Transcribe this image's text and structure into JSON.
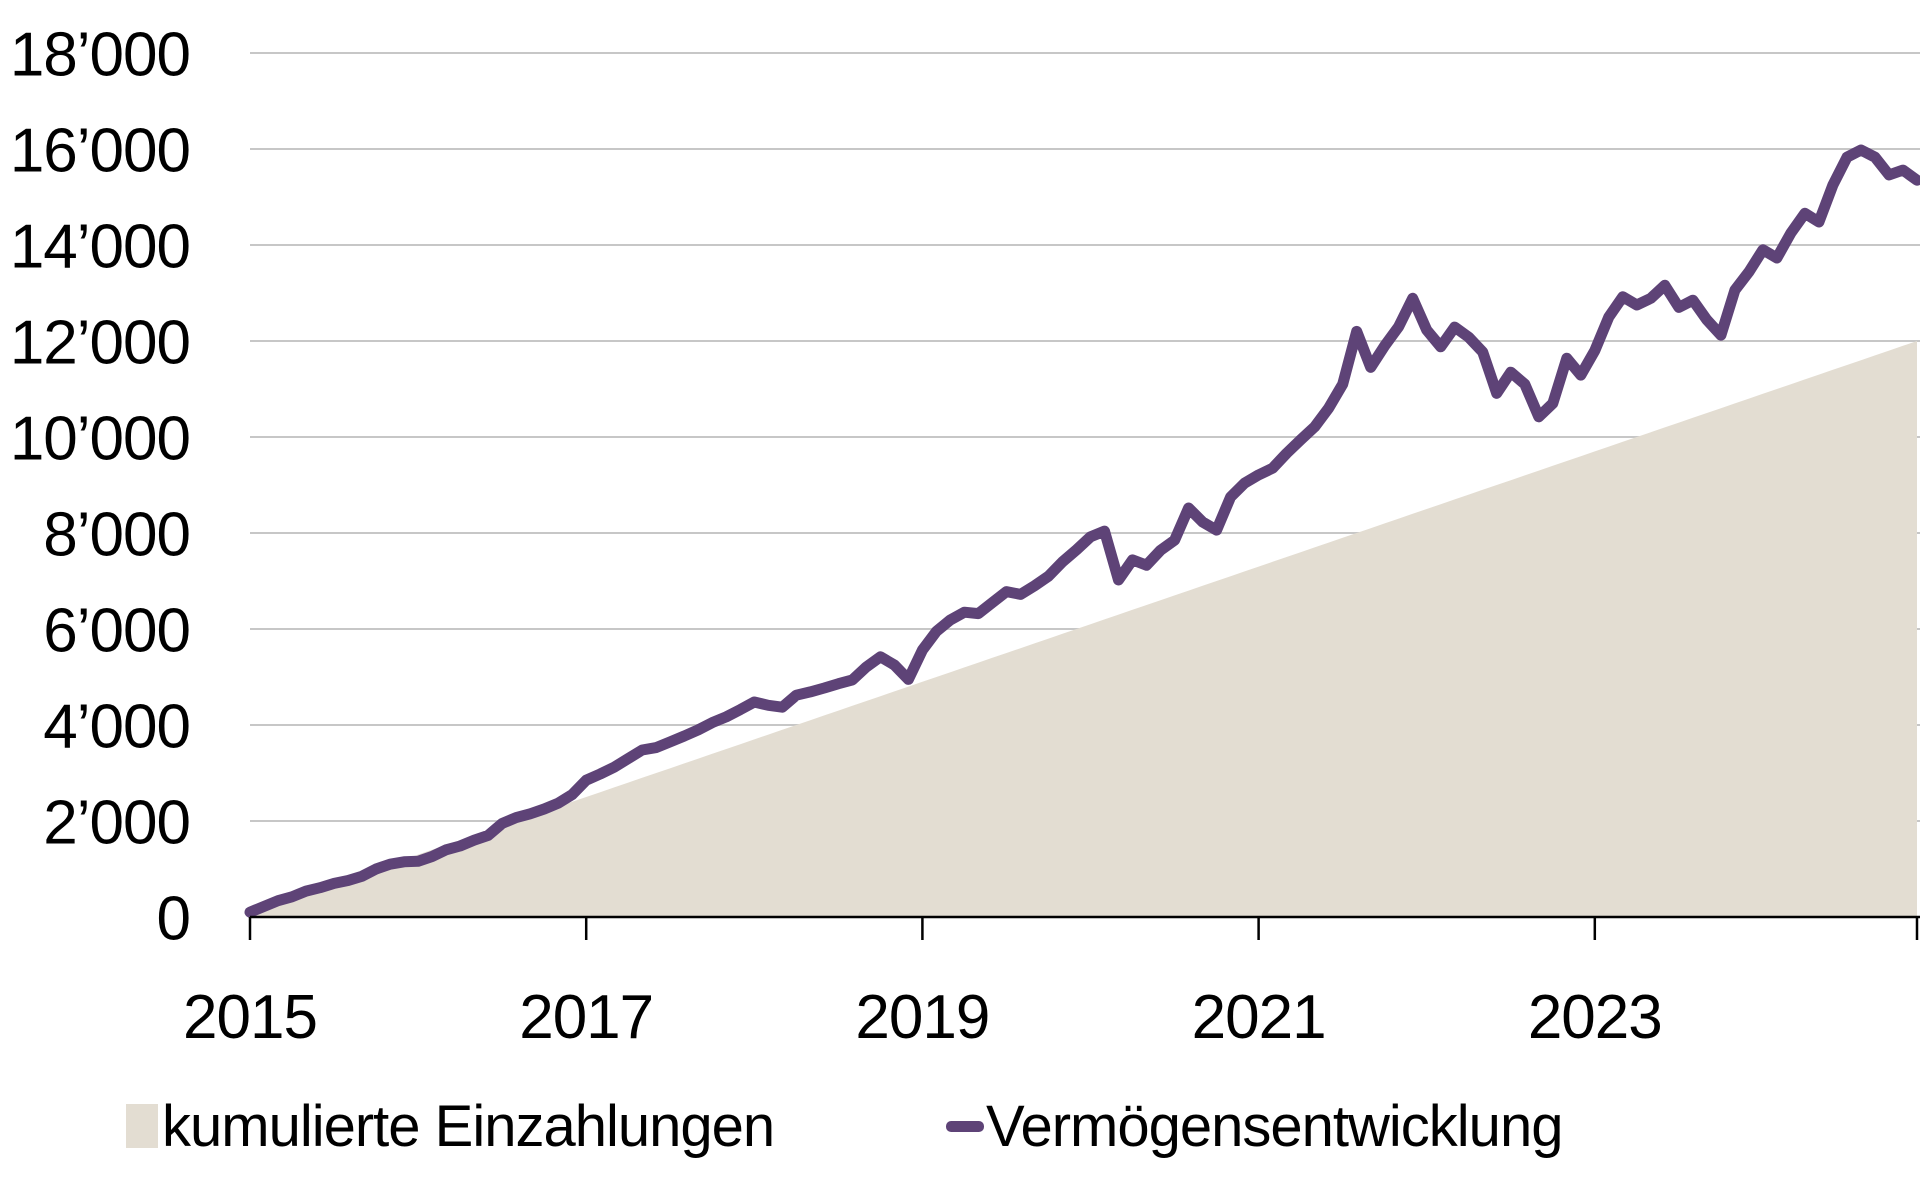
{
  "chart_data": {
    "type": "area+line",
    "title": "",
    "frequency": "monthly",
    "x_start": "2015-01",
    "x_end": "2024-12",
    "x_tick_labels": [
      "2015",
      "2017",
      "2019",
      "2021",
      "2023"
    ],
    "x_tick_month_index": [
      0,
      24,
      48,
      72,
      96
    ],
    "y_ticks": [
      0,
      2000,
      4000,
      6000,
      8000,
      10000,
      12000,
      14000,
      16000,
      18000
    ],
    "y_tick_labels": [
      "0",
      "2’000",
      "4’000",
      "6’000",
      "8’000",
      "10’000",
      "12’000",
      "14’000",
      "16’000",
      "18’000"
    ],
    "ylim": [
      0,
      18000
    ],
    "grid": "horizontal",
    "legend_position": "bottom",
    "series": [
      {
        "name": "kumulierte Einzahlungen",
        "type": "area",
        "color": "#E3DDD2",
        "values": [
          100,
          200,
          300,
          400,
          500,
          600,
          700,
          800,
          900,
          1000,
          1100,
          1200,
          1300,
          1400,
          1500,
          1600,
          1700,
          1800,
          1900,
          2000,
          2100,
          2200,
          2300,
          2400,
          2500,
          2600,
          2700,
          2800,
          2900,
          3000,
          3100,
          3200,
          3300,
          3400,
          3500,
          3600,
          3700,
          3800,
          3900,
          4000,
          4100,
          4200,
          4300,
          4400,
          4500,
          4600,
          4700,
          4800,
          4900,
          5000,
          5100,
          5200,
          5300,
          5400,
          5500,
          5600,
          5700,
          5800,
          5900,
          6000,
          6100,
          6200,
          6300,
          6400,
          6500,
          6600,
          6700,
          6800,
          6900,
          7000,
          7100,
          7200,
          7300,
          7400,
          7500,
          7600,
          7700,
          7800,
          7900,
          8000,
          8100,
          8200,
          8300,
          8400,
          8500,
          8600,
          8700,
          8800,
          8900,
          9000,
          9100,
          9200,
          9300,
          9400,
          9500,
          9600,
          9700,
          9800,
          9900,
          10000,
          10100,
          10200,
          10300,
          10400,
          10500,
          10600,
          10700,
          10800,
          10900,
          11000,
          11100,
          11200,
          11300,
          11400,
          11500,
          11600,
          11700,
          11800,
          11900,
          12000
        ]
      },
      {
        "name": "Vermögensentwicklung",
        "type": "line",
        "color": "#5E4377",
        "values": [
          100,
          220,
          340,
          420,
          540,
          610,
          700,
          760,
          850,
          1000,
          1100,
          1150,
          1160,
          1260,
          1400,
          1480,
          1600,
          1700,
          1950,
          2070,
          2150,
          2250,
          2370,
          2550,
          2850,
          2980,
          3120,
          3300,
          3480,
          3530,
          3650,
          3770,
          3900,
          4050,
          4170,
          4320,
          4480,
          4410,
          4370,
          4620,
          4690,
          4770,
          4860,
          4940,
          5210,
          5420,
          5250,
          4950,
          5560,
          5950,
          6190,
          6350,
          6320,
          6550,
          6780,
          6720,
          6900,
          7100,
          7400,
          7650,
          7920,
          8040,
          7020,
          7440,
          7330,
          7640,
          7850,
          8520,
          8230,
          8060,
          8750,
          9040,
          9210,
          9350,
          9660,
          9940,
          10210,
          10600,
          11100,
          12200,
          11450,
          11900,
          12300,
          12890,
          12230,
          11880,
          12290,
          12080,
          11770,
          10910,
          11350,
          11100,
          10420,
          10700,
          11640,
          11290,
          11800,
          12500,
          12920,
          12750,
          12890,
          13160,
          12700,
          12850,
          12440,
          12120,
          13060,
          13440,
          13900,
          13730,
          14250,
          14660,
          14480,
          15250,
          15830,
          15980,
          15830,
          15460,
          15560,
          15350
        ]
      }
    ]
  },
  "legend": {
    "area_label": "kumulierte Einzahlungen",
    "line_label": "Vermögensentwicklung"
  },
  "colors": {
    "area_fill": "#E3DDD2",
    "line_stroke": "#5E4377",
    "gridline": "#C7C7C7",
    "axis": "#000000",
    "text": "#000000",
    "background": "#FFFFFF"
  }
}
